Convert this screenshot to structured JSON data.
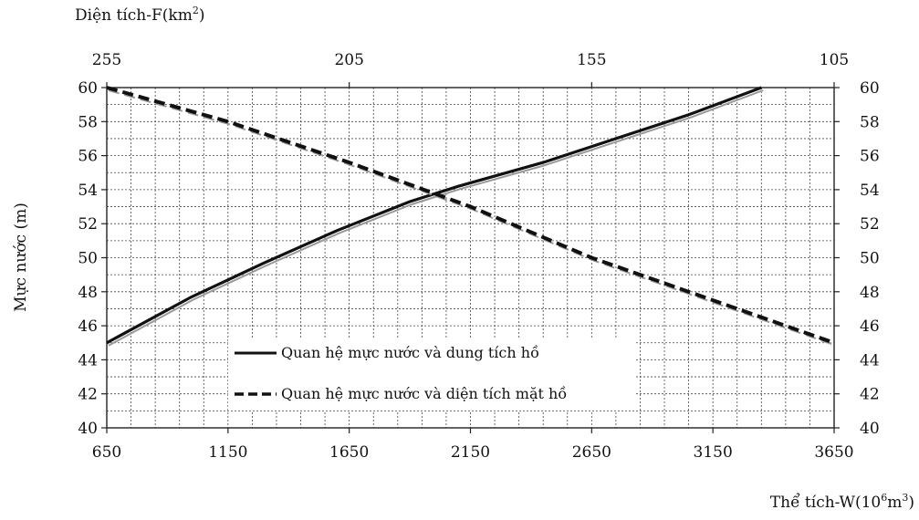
{
  "chart_data": {
    "type": "line",
    "title": "",
    "top_axis_label": "Diện tích-F(km",
    "top_axis_label_sup": "2",
    "top_axis_label_close": ")",
    "bottom_axis_label": "Thể tích-W(10",
    "bottom_axis_label_sup": "6",
    "bottom_axis_label_unit": "m",
    "bottom_axis_label_sup2": "3",
    "bottom_axis_label_close": ")",
    "ylabel": "Mực nước (m)",
    "ylim": [
      40,
      60
    ],
    "y_ticks": [
      40,
      42,
      44,
      46,
      48,
      50,
      52,
      54,
      56,
      58,
      60
    ],
    "bottom_xlim": [
      650,
      3650
    ],
    "bottom_ticks": [
      650,
      1150,
      1650,
      2150,
      2650,
      3150,
      3650
    ],
    "top_xlim": [
      255,
      105
    ],
    "top_ticks": [
      255,
      205,
      155,
      105
    ],
    "grid": true,
    "legend_position": "bottom-left",
    "series": [
      {
        "name": "Quan hệ mực nước và dung tích hồ",
        "axis": "bottom",
        "style": "solid",
        "color": "#111111",
        "x": [
          650,
          1000,
          1300,
          1600,
          1900,
          2100,
          2450,
          2750,
          3050,
          3350
        ],
        "y": [
          45,
          47.7,
          49.7,
          51.6,
          53.3,
          54.2,
          55.6,
          57.0,
          58.4,
          60
        ]
      },
      {
        "name": "Quan hệ mực nước và diện tích mặt hồ",
        "axis": "top",
        "style": "dashed",
        "color": "#111111",
        "x": [
          255,
          230,
          205,
          180,
          155,
          130,
          105
        ],
        "y": [
          60,
          58,
          55.6,
          53,
          50,
          47.5,
          45
        ]
      }
    ]
  }
}
